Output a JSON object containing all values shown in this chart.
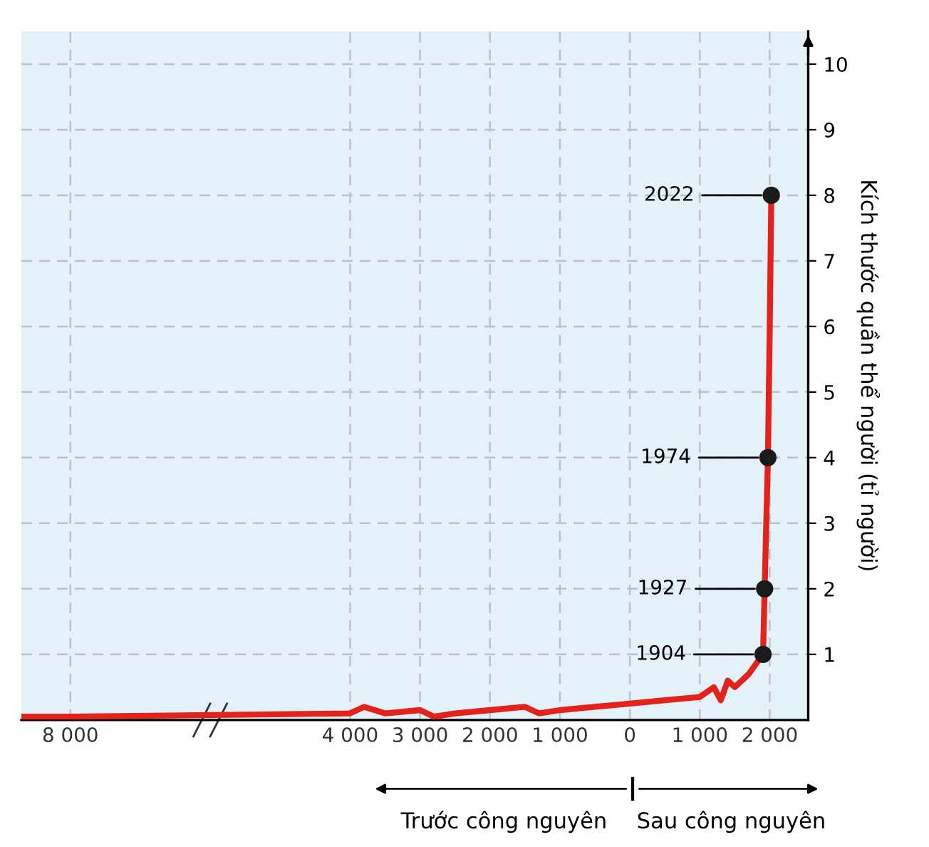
{
  "chart_data": {
    "type": "line",
    "ylabel": "Kích thước quần thể người (tỉ người)",
    "xlim": [
      -8700,
      2550
    ],
    "ylim": [
      0,
      10.5
    ],
    "xticks": [
      {
        "value": -8000,
        "label": "8 000"
      },
      {
        "value": -4000,
        "label": "4 000"
      },
      {
        "value": -3000,
        "label": "3 000"
      },
      {
        "value": -2000,
        "label": "2 000"
      },
      {
        "value": -1000,
        "label": "1 000"
      },
      0,
      {
        "value": 1000,
        "label": "1 000"
      },
      {
        "value": 2000,
        "label": "2 000"
      }
    ],
    "yticks": [
      1,
      2,
      3,
      4,
      5,
      6,
      7,
      8,
      9,
      10
    ],
    "grid": true,
    "line_style": "solid",
    "series": [
      {
        "color": "#e3231b",
        "marker": "none",
        "x": [
          -8700,
          -8000,
          -4000,
          -3800,
          -3500,
          -3000,
          -2800,
          -2500,
          -2000,
          -1500,
          -1300,
          -1000,
          -500,
          0,
          500,
          1000,
          1200,
          1300,
          1400,
          1500,
          1600,
          1700,
          1800,
          1904,
          1927,
          1950,
          1974,
          2000,
          2022
        ],
        "values": [
          0.05,
          0.05,
          0.1,
          0.2,
          0.1,
          0.15,
          0.05,
          0.1,
          0.15,
          0.2,
          0.1,
          0.15,
          0.2,
          0.25,
          0.3,
          0.35,
          0.5,
          0.3,
          0.6,
          0.5,
          0.6,
          0.7,
          0.85,
          1,
          2,
          3,
          4,
          6,
          8
        ]
      },
      {
        "type": "scatter",
        "color": "#1a1a1a",
        "marker": "circle",
        "x": [
          1904,
          1927,
          1974,
          2022
        ],
        "values": [
          1,
          2,
          4,
          8
        ]
      }
    ],
    "annotations": [
      {
        "text": "1904",
        "x": 1904,
        "y": 1
      },
      {
        "text": "1927",
        "x": 1927,
        "y": 2
      },
      {
        "text": "1974",
        "x": 1974,
        "y": 4
      },
      {
        "text": "2022",
        "x": 2022,
        "y": 8
      },
      "Trước công nguyên",
      "Sau công nguyên"
    ]
  }
}
